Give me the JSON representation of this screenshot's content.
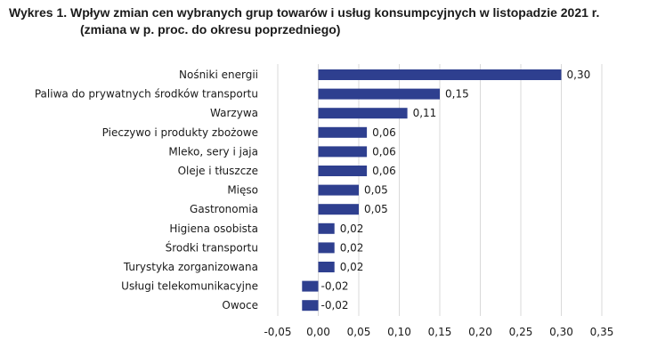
{
  "chart_data": {
    "type": "bar",
    "orientation": "horizontal",
    "title": "Wykres 1. Wpływ zmian cen wybranych grup towarów i usług konsumpcyjnych w listopadzie 2021 r.",
    "subtitle": "(zmiana w p. proc. do okresu poprzedniego)",
    "categories": [
      "Nośniki energii",
      "Paliwa do prywatnych środków transportu",
      "Warzywa",
      "Pieczywo i produkty zbożowe",
      "Mleko, sery i jaja",
      "Oleje i tłuszcze",
      "Mięso",
      "Gastronomia",
      "Higiena osobista",
      "Środki transportu",
      "Turystyka zorganizowana",
      "Usługi telekomunikacyjne",
      "Owoce"
    ],
    "values": [
      0.3,
      0.15,
      0.11,
      0.06,
      0.06,
      0.06,
      0.05,
      0.05,
      0.02,
      0.02,
      0.02,
      -0.02,
      -0.02
    ],
    "value_labels": [
      "0,30",
      "0,15",
      "0,11",
      "0,06",
      "0,06",
      "0,06",
      "0,05",
      "0,05",
      "0,02",
      "0,02",
      "0,02",
      "-0,02",
      "-0,02"
    ],
    "xlim": [
      -0.05,
      0.35
    ],
    "ticks": [
      -0.05,
      0.0,
      0.05,
      0.1,
      0.15,
      0.2,
      0.25,
      0.3,
      0.35
    ],
    "tick_labels": [
      "-0,05",
      "0,00",
      "0,05",
      "0,10",
      "0,15",
      "0,20",
      "0,25",
      "0,30",
      "0,35"
    ],
    "grid": "vertical",
    "bar_color": "#2e3f8f",
    "grid_color": "#d9d9d9"
  }
}
